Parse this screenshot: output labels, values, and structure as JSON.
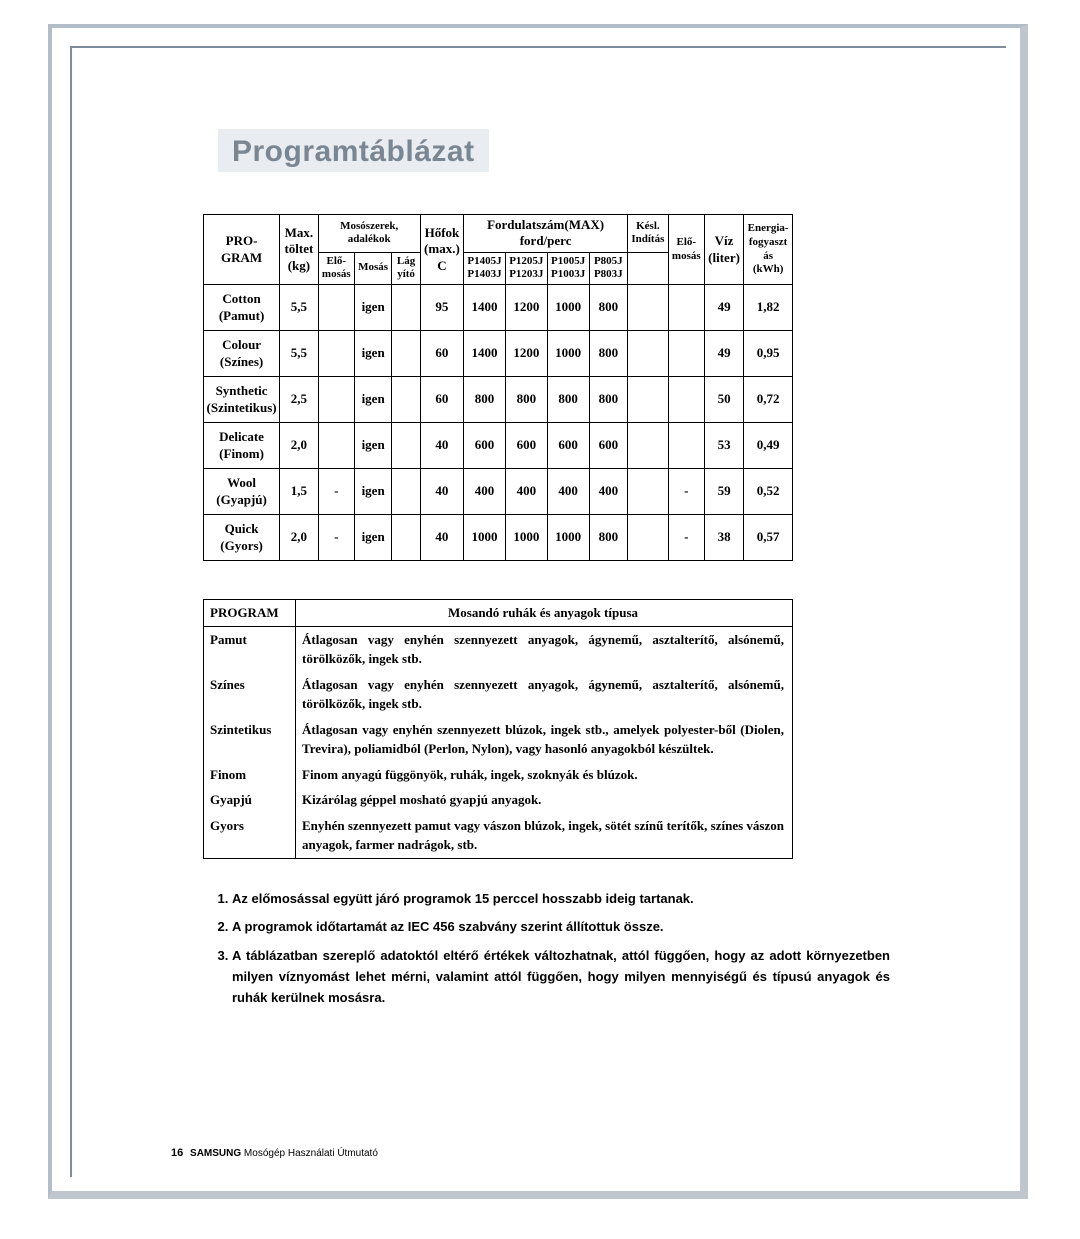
{
  "title": "Programtáblázat",
  "table1": {
    "headers": {
      "program": "PRO-\nGRAM",
      "max_toltet": "Max.\ntöltet\n(kg)",
      "mososzerek": "Mosószerek,\nadalékok",
      "elomosas": "Elő-\nmosás",
      "mosas": "Mosás",
      "lagyito": "Lág\nyító",
      "hofok": "Hőfok\n(max.)\nC",
      "fordulatszam": "Fordulatszám(MAX)\nford/perc",
      "p1405": "P1405J\nP1403J",
      "p1205": "P1205J\nP1203J",
      "p1005": "P1005J\nP1003J",
      "p805": "P805J\nP803J",
      "kesl": "Késl.\nIndítás",
      "elomosas2": "Elő-\nmosás",
      "viz": "Víz\n(liter)",
      "energia": "Energia-\nfogyaszt\nás\n(kWh)"
    },
    "rows": [
      {
        "name": "Cotton\n(Pamut)",
        "kg": "5,5",
        "elo": "",
        "mosas": "igen",
        "lagy": "",
        "c": "95",
        "r1": "1400",
        "r2": "1200",
        "r3": "1000",
        "r4": "800",
        "kesl": "",
        "elom": "",
        "viz": "49",
        "kwh": "1,82"
      },
      {
        "name": "Colour\n(Színes)",
        "kg": "5,5",
        "elo": "",
        "mosas": "igen",
        "lagy": "",
        "c": "60",
        "r1": "1400",
        "r2": "1200",
        "r3": "1000",
        "r4": "800",
        "kesl": "",
        "elom": "",
        "viz": "49",
        "kwh": "0,95"
      },
      {
        "name": "Synthetic\n(Szintetikus)",
        "kg": "2,5",
        "elo": "",
        "mosas": "igen",
        "lagy": "",
        "c": "60",
        "r1": "800",
        "r2": "800",
        "r3": "800",
        "r4": "800",
        "kesl": "",
        "elom": "",
        "viz": "50",
        "kwh": "0,72"
      },
      {
        "name": "Delicate\n(Finom)",
        "kg": "2,0",
        "elo": "",
        "mosas": "igen",
        "lagy": "",
        "c": "40",
        "r1": "600",
        "r2": "600",
        "r3": "600",
        "r4": "600",
        "kesl": "",
        "elom": "",
        "viz": "53",
        "kwh": "0,49"
      },
      {
        "name": "Wool\n(Gyapjú)",
        "kg": "1,5",
        "elo": "-",
        "mosas": "igen",
        "lagy": "",
        "c": "40",
        "r1": "400",
        "r2": "400",
        "r3": "400",
        "r4": "400",
        "kesl": "",
        "elom": "-",
        "viz": "59",
        "kwh": "0,52"
      },
      {
        "name": "Quick\n(Gyors)",
        "kg": "2,0",
        "elo": "-",
        "mosas": "igen",
        "lagy": "",
        "c": "40",
        "r1": "1000",
        "r2": "1000",
        "r3": "1000",
        "r4": "800",
        "kesl": "",
        "elom": "-",
        "viz": "38",
        "kwh": "0,57"
      }
    ]
  },
  "table2": {
    "head_prog": "PROGRAM",
    "head_text": "Mosandó ruhák és anyagok típusa",
    "rows": [
      {
        "prog": "Pamut",
        "text": "Átlagosan vagy enyhén szennyezett anyagok, ágynemű, asztalterítő, alsónemű, törölközők, ingek stb."
      },
      {
        "prog": "Színes",
        "text": "Átlagosan vagy enyhén szennyezett anyagok, ágynemű, asztalterítő, alsónemű, törölközők, ingek stb."
      },
      {
        "prog": "Szintetikus",
        "text": "Átlagosan vagy enyhén szennyezett blúzok, ingek stb., amelyek polyester-ből (Diolen, Trevira), poliamidból (Perlon, Nylon), vagy hasonló anyagokból készültek."
      },
      {
        "prog": "Finom",
        "text": "Finom anyagú függönyök, ruhák, ingek, szoknyák és blúzok."
      },
      {
        "prog": "Gyapjú",
        "text": "Kizárólag géppel mosható gyapjú anyagok."
      },
      {
        "prog": "Gyors",
        "text": "Enyhén szennyezett pamut vagy vászon blúzok, ingek, sötét színű terítők, színes vászon anyagok, farmer nadrágok, stb."
      }
    ]
  },
  "notes": [
    "Az előmosással együtt járó programok 15 perccel hosszabb ideig tartanak.",
    "A programok időtartamát az IEC 456 szabvány szerint állítottuk össze.",
    "A táblázatban szereplő adatoktól eltérő értékek változhatnak, attól függően, hogy az adott környezetben milyen víznyomást lehet mérni, valamint attól függően, hogy milyen mennyiségű és típusú anyagok és ruhák kerülnek mosásra."
  ],
  "footer": {
    "pageno": "16",
    "brand": "SAMSUNG",
    "text": " Mosógép Használati Útmutató"
  }
}
